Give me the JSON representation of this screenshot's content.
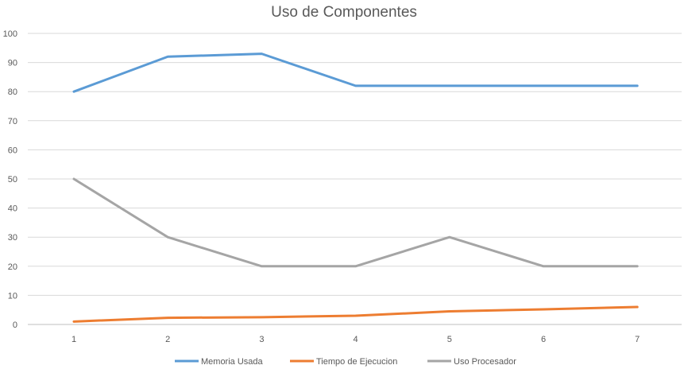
{
  "chart_data": {
    "type": "line",
    "title": "Uso de Componentes",
    "x": [
      1,
      2,
      3,
      4,
      5,
      6,
      7
    ],
    "ylim": [
      0,
      100
    ],
    "yticks": [
      0,
      10,
      20,
      30,
      40,
      50,
      60,
      70,
      80,
      90,
      100
    ],
    "grid": true,
    "legend_position": "bottom",
    "series": [
      {
        "name": "Memoria Usada",
        "color": "#5b9bd5",
        "values": [
          80,
          92,
          93,
          82,
          82,
          82,
          82
        ]
      },
      {
        "name": "Tiempo de Ejecucion",
        "color": "#ed7d31",
        "values": [
          1,
          2.3,
          2.5,
          3,
          4.5,
          5.2,
          6
        ]
      },
      {
        "name": "Uso Procesador",
        "color": "#a5a5a5",
        "values": [
          50,
          30,
          20,
          20,
          30,
          20,
          20
        ]
      }
    ]
  }
}
